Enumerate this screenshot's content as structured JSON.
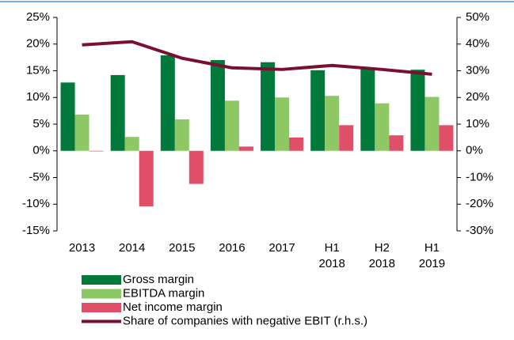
{
  "chart_data": {
    "type": "bar_line",
    "categories": [
      [
        "2013"
      ],
      [
        "2014"
      ],
      [
        "2015"
      ],
      [
        "2016"
      ],
      [
        "2017"
      ],
      [
        "H1",
        "2018"
      ],
      [
        "H2",
        "2018"
      ],
      [
        "H1",
        "2019"
      ]
    ],
    "series": [
      {
        "name": "Gross margin",
        "color": "#00793a",
        "values": [
          12.8,
          14.2,
          17.9,
          17.0,
          16.6,
          15.1,
          15.3,
          15.2
        ]
      },
      {
        "name": "EBITDA margin",
        "color": "#8dc865",
        "values": [
          6.8,
          2.6,
          5.9,
          9.4,
          10.0,
          10.3,
          8.9,
          10.1
        ]
      },
      {
        "name": "Net income margin",
        "color": "#e04e68",
        "values": [
          -0.1,
          -10.4,
          -6.2,
          0.8,
          2.5,
          4.8,
          2.9,
          4.8
        ]
      },
      {
        "name": "Share of companies with negative EBIT (r.h.s.)",
        "color": "#7a0f2e",
        "axis": "y2",
        "values": [
          39.7,
          40.9,
          34.7,
          31.1,
          30.5,
          32.0,
          30.5,
          28.7
        ]
      }
    ],
    "ylim": [
      -15,
      25
    ],
    "yticks": [
      {
        "value": -15,
        "label": "-15%"
      },
      {
        "value": -10,
        "label": "-10%"
      },
      {
        "value": -5,
        "label": "-5%"
      },
      {
        "value": 0,
        "label": "0%"
      },
      {
        "value": 5,
        "label": "5%"
      },
      {
        "value": 10,
        "label": "10%"
      },
      {
        "value": 15,
        "label": "15%"
      },
      {
        "value": 20,
        "label": "20%"
      },
      {
        "value": 25,
        "label": "25%"
      }
    ],
    "y2lim": [
      -30,
      50
    ],
    "y2ticks": [
      {
        "value": -30,
        "label": "-30%"
      },
      {
        "value": -20,
        "label": "-20%"
      },
      {
        "value": -10,
        "label": "-10%"
      },
      {
        "value": 0,
        "label": "0%"
      },
      {
        "value": 10,
        "label": "10%"
      },
      {
        "value": 20,
        "label": "20%"
      },
      {
        "value": 30,
        "label": "30%"
      },
      {
        "value": 40,
        "label": "40%"
      },
      {
        "value": 50,
        "label": "50%"
      }
    ]
  }
}
